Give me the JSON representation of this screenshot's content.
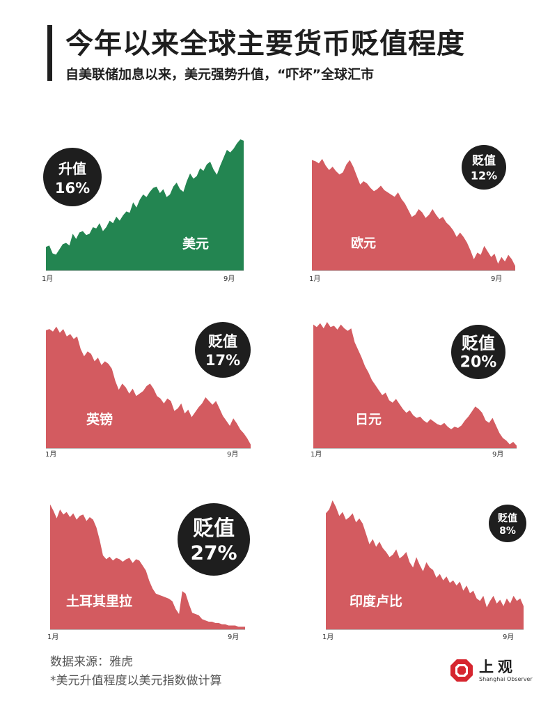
{
  "header": {
    "title": "今年以来全球主要货币贬值程度",
    "subtitle": "自美联储加息以来，美元强势升值，“吓坏”全球汇市"
  },
  "colors": {
    "up": "#238551",
    "down": "#d35b60",
    "badge": "#1e1e1e",
    "logo_red": "#d6262f"
  },
  "chart_data": [
    {
      "type": "area",
      "name": "美元",
      "change_label": "升值",
      "change_pct": "16%",
      "change_value": 16,
      "direction": "up",
      "x_ticks": [
        "1月",
        "9月"
      ],
      "y": [
        0.18,
        0.19,
        0.13,
        0.12,
        0.16,
        0.2,
        0.21,
        0.19,
        0.28,
        0.24,
        0.29,
        0.3,
        0.27,
        0.28,
        0.33,
        0.32,
        0.36,
        0.3,
        0.33,
        0.38,
        0.36,
        0.41,
        0.38,
        0.42,
        0.45,
        0.44,
        0.52,
        0.48,
        0.54,
        0.58,
        0.56,
        0.6,
        0.63,
        0.64,
        0.59,
        0.62,
        0.56,
        0.58,
        0.64,
        0.67,
        0.62,
        0.6,
        0.68,
        0.74,
        0.7,
        0.72,
        0.78,
        0.76,
        0.81,
        0.83,
        0.77,
        0.73,
        0.8,
        0.86,
        0.92,
        0.9,
        0.93,
        0.97,
        1.0,
        0.99
      ]
    },
    {
      "type": "area",
      "name": "欧元",
      "change_label": "贬值",
      "change_pct": "12%",
      "change_value": -12,
      "direction": "down",
      "x_ticks": [
        "1月",
        "9月"
      ],
      "y": [
        0.99,
        0.98,
        0.96,
        1.0,
        0.94,
        0.9,
        0.93,
        0.89,
        0.86,
        0.88,
        0.95,
        0.99,
        0.93,
        0.85,
        0.77,
        0.8,
        0.78,
        0.74,
        0.71,
        0.73,
        0.76,
        0.72,
        0.7,
        0.68,
        0.66,
        0.7,
        0.64,
        0.6,
        0.54,
        0.48,
        0.5,
        0.55,
        0.52,
        0.47,
        0.5,
        0.55,
        0.5,
        0.46,
        0.48,
        0.43,
        0.4,
        0.36,
        0.3,
        0.34,
        0.3,
        0.25,
        0.18,
        0.1,
        0.16,
        0.14,
        0.22,
        0.17,
        0.12,
        0.15,
        0.06,
        0.12,
        0.08,
        0.14,
        0.1,
        0.04
      ]
    },
    {
      "type": "area",
      "name": "英镑",
      "change_label": "贬值",
      "change_pct": "17%",
      "change_value": -17,
      "direction": "down",
      "x_ticks": [
        "1月",
        "9月"
      ],
      "y": [
        0.95,
        0.96,
        0.94,
        0.98,
        0.93,
        0.96,
        0.9,
        0.92,
        0.88,
        0.9,
        0.8,
        0.74,
        0.78,
        0.76,
        0.7,
        0.73,
        0.67,
        0.7,
        0.68,
        0.64,
        0.54,
        0.47,
        0.52,
        0.49,
        0.44,
        0.48,
        0.42,
        0.44,
        0.46,
        0.5,
        0.52,
        0.48,
        0.42,
        0.4,
        0.36,
        0.4,
        0.38,
        0.3,
        0.32,
        0.36,
        0.28,
        0.31,
        0.25,
        0.29,
        0.33,
        0.36,
        0.41,
        0.38,
        0.35,
        0.38,
        0.32,
        0.26,
        0.22,
        0.18,
        0.24,
        0.2,
        0.15,
        0.12,
        0.08,
        0.03
      ]
    },
    {
      "type": "area",
      "name": "日元",
      "change_label": "贬值",
      "change_pct": "20%",
      "change_value": -20,
      "direction": "down",
      "x_ticks": [
        "1月",
        "9月"
      ],
      "y": [
        0.98,
        0.96,
        0.99,
        0.95,
        1.0,
        0.96,
        0.97,
        0.94,
        0.98,
        0.95,
        0.93,
        0.95,
        0.84,
        0.78,
        0.72,
        0.65,
        0.6,
        0.54,
        0.5,
        0.46,
        0.42,
        0.44,
        0.38,
        0.36,
        0.39,
        0.35,
        0.31,
        0.28,
        0.3,
        0.26,
        0.24,
        0.25,
        0.22,
        0.2,
        0.23,
        0.21,
        0.19,
        0.18,
        0.2,
        0.17,
        0.15,
        0.17,
        0.16,
        0.18,
        0.22,
        0.25,
        0.29,
        0.33,
        0.31,
        0.28,
        0.22,
        0.2,
        0.24,
        0.18,
        0.12,
        0.08,
        0.06,
        0.03,
        0.05,
        0.02
      ]
    },
    {
      "type": "area",
      "name": "土耳其里拉",
      "change_label": "贬值",
      "change_pct": "27%",
      "change_value": -27,
      "direction": "down",
      "x_ticks": [
        "1月",
        "9月"
      ],
      "y": [
        0.98,
        0.93,
        0.87,
        0.94,
        0.9,
        0.92,
        0.88,
        0.91,
        0.86,
        0.89,
        0.9,
        0.85,
        0.88,
        0.86,
        0.8,
        0.7,
        0.58,
        0.55,
        0.57,
        0.54,
        0.56,
        0.55,
        0.53,
        0.55,
        0.56,
        0.52,
        0.55,
        0.54,
        0.5,
        0.46,
        0.38,
        0.32,
        0.28,
        0.27,
        0.26,
        0.25,
        0.24,
        0.22,
        0.16,
        0.12,
        0.3,
        0.28,
        0.2,
        0.13,
        0.12,
        0.11,
        0.08,
        0.07,
        0.06,
        0.06,
        0.05,
        0.05,
        0.04,
        0.04,
        0.03,
        0.03,
        0.03,
        0.02,
        0.02,
        0.02
      ]
    },
    {
      "type": "area",
      "name": "印度卢比",
      "change_label": "贬值",
      "change_pct": "8%",
      "change_value": -8,
      "direction": "down",
      "x_ticks": [
        "1月",
        "9月"
      ],
      "y": [
        0.9,
        0.93,
        1.0,
        0.95,
        0.88,
        0.91,
        0.85,
        0.87,
        0.9,
        0.83,
        0.86,
        0.82,
        0.74,
        0.66,
        0.7,
        0.64,
        0.68,
        0.63,
        0.6,
        0.56,
        0.58,
        0.62,
        0.55,
        0.57,
        0.6,
        0.52,
        0.48,
        0.56,
        0.5,
        0.45,
        0.52,
        0.48,
        0.46,
        0.4,
        0.43,
        0.38,
        0.41,
        0.36,
        0.38,
        0.34,
        0.37,
        0.3,
        0.34,
        0.28,
        0.3,
        0.24,
        0.22,
        0.26,
        0.17,
        0.22,
        0.26,
        0.2,
        0.23,
        0.18,
        0.24,
        0.2,
        0.26,
        0.22,
        0.24,
        0.18
      ]
    }
  ],
  "footer": {
    "source": "数据来源：雅虎",
    "note": "*美元升值程度以美元指数做计算"
  },
  "logo": {
    "name": "上观",
    "english": "Shanghai Observer"
  }
}
